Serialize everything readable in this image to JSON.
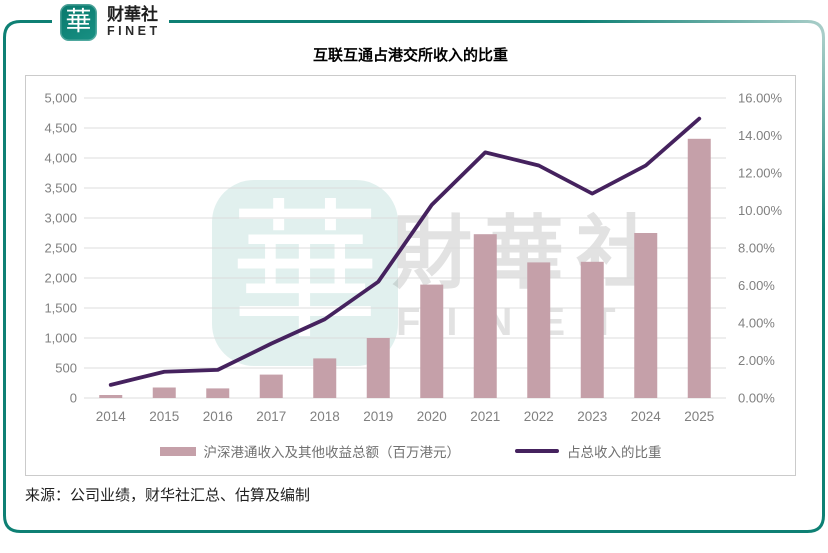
{
  "brand": {
    "logo_glyph": "華",
    "name_cn": "财華社",
    "name_en": "FINET"
  },
  "title": "互联互通占港交所收入的比重",
  "source": "来源：公司业绩，财华社汇总、估算及编制",
  "watermark": {
    "stamp_glyph": "華",
    "text_cn": "財華社",
    "text_en": "FINET"
  },
  "chart_data": {
    "type": "combo",
    "title": "互联互通占港交所收入的比重",
    "categories": [
      "2014",
      "2015",
      "2016",
      "2017",
      "2018",
      "2019",
      "2020",
      "2021",
      "2022",
      "2023",
      "2024",
      "2025"
    ],
    "series": [
      {
        "name": "沪深港通收入及其他收益总额（百万港元）",
        "type": "bar",
        "axis": "left",
        "values": [
          50,
          175,
          160,
          390,
          660,
          1000,
          1890,
          2730,
          2260,
          2270,
          2750,
          4320
        ]
      },
      {
        "name": "占总收入的比重",
        "type": "line",
        "axis": "right",
        "values_percent": [
          0.7,
          1.4,
          1.5,
          2.9,
          4.2,
          6.2,
          10.3,
          13.1,
          12.4,
          10.9,
          12.4,
          14.9
        ]
      }
    ],
    "left_axis": {
      "min": 0,
      "max": 5000,
      "step": 500,
      "tick_labels": [
        "0",
        "500",
        "1,000",
        "1,500",
        "2,000",
        "2,500",
        "3,000",
        "3,500",
        "4,000",
        "4,500",
        "5,000"
      ]
    },
    "right_axis": {
      "min": 0,
      "max": 16,
      "step": 2,
      "tick_labels": [
        "0.00%",
        "2.00%",
        "4.00%",
        "6.00%",
        "8.00%",
        "10.00%",
        "12.00%",
        "14.00%",
        "16.00%"
      ]
    },
    "grid": true,
    "legend_position": "bottom"
  },
  "colors": {
    "bar": "#c5a0a9",
    "line": "#45225e",
    "grid": "#dcdcdc",
    "axis_text": "#808080",
    "teal": "#0e8074",
    "teal_light": "#a8cdc8"
  }
}
